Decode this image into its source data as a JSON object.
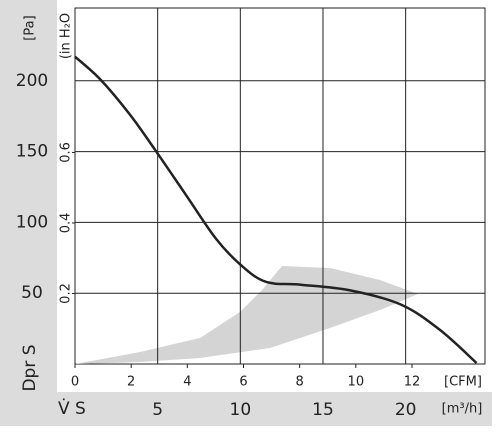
{
  "chart_data": {
    "type": "line",
    "y_title": "Dpr S",
    "y_unit": "[Pa]",
    "y2_unit": "(in H₂O",
    "x_unit": "[CFM]",
    "x2_title": "V̇ S",
    "x2_unit": "[m³/h]",
    "x": [
      0,
      0.9,
      1.96,
      2.86,
      3.93,
      5,
      5.9,
      6.8,
      8.04,
      9.8,
      11.6,
      13,
      14.3
    ],
    "series": [
      {
        "color": "#222222",
        "values": [
          217,
          201,
          176,
          151,
          120,
          89,
          70,
          58,
          56,
          52,
          42,
          24,
          0.7
        ]
      }
    ],
    "xlim": [
      0,
      14.6
    ],
    "xticks": [
      0,
      2,
      4,
      6,
      8,
      10,
      12
    ],
    "ylim": [
      0,
      250
    ],
    "yticks": [
      50,
      100,
      150,
      200
    ],
    "y2lim": [
      0,
      1.004
    ],
    "y2ticks": [
      0.2,
      0.4,
      0.6
    ],
    "x2lim": [
      0,
      24.8
    ],
    "x2ticks": [
      5,
      10,
      15,
      20
    ],
    "grid": true
  }
}
